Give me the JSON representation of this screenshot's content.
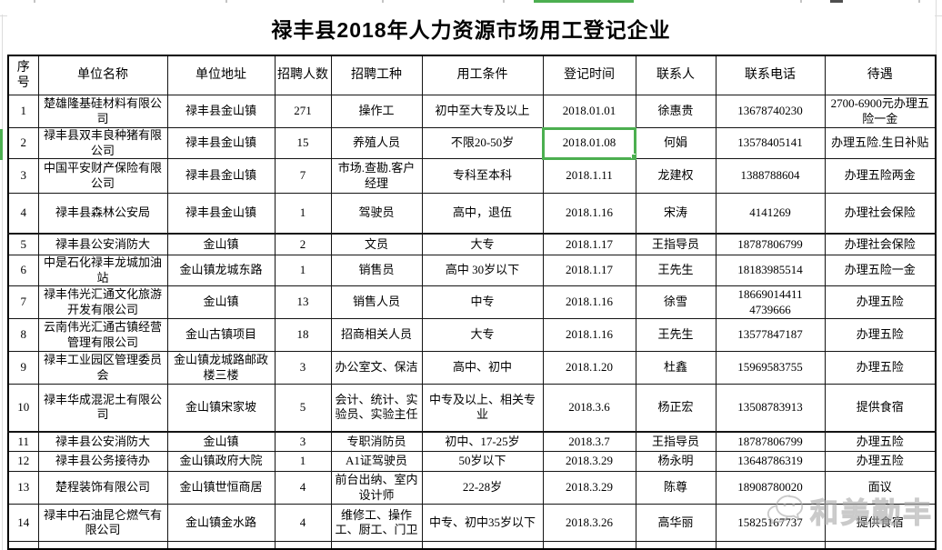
{
  "title": "禄丰县2018年人力资源市场用工登记企业",
  "table": {
    "headers": [
      "序\n号",
      "单位名称",
      "单位地址",
      "招聘人数",
      "招聘工种",
      "用工条件",
      "登记时间",
      "联系人",
      "联系电话",
      "待遇"
    ],
    "rows": [
      [
        "1",
        "楚雄隆基硅材料有限公司",
        "禄丰县金山镇",
        "271",
        "操作工",
        "初中至大专及以上",
        "2018.01.01",
        "徐惠贵",
        "13678740230",
        "2700-6900元办理五险一金"
      ],
      [
        "2",
        "禄丰县双丰良种猪有限公司",
        "禄丰县金山镇",
        "15",
        "养殖人员",
        "不限20-50岁",
        "2018.01.08",
        "何娟",
        "13578405141",
        "办理五险.生日补贴"
      ],
      [
        "3",
        "中国平安财产保险有限公司",
        "禄丰县金山镇",
        "7",
        "市场.查勘.客户经理",
        "专科至本科",
        "2018.1.11",
        "龙建权",
        "1388788604",
        "办理五险两金"
      ],
      [
        "4",
        "禄丰县森林公安局",
        "禄丰县金山镇",
        "1",
        "驾驶员",
        "高中，退伍",
        "2018.1.16",
        "宋涛",
        "4141269",
        "办理社会保险"
      ],
      [
        "5",
        "禄丰县公安消防大",
        "金山镇",
        "2",
        "文员",
        "大专",
        "2018.1.17",
        "王指导员",
        "18787806799",
        "办理社会保险"
      ],
      [
        "6",
        "中是石化禄丰龙城加油站",
        "金山镇龙城东路",
        "1",
        "销售员",
        "高中  30岁以下",
        "2018.1.17",
        "王先生",
        "18183985514",
        "办理五险一金"
      ],
      [
        "7",
        "禄丰伟光汇通文化旅游开发有限公司",
        "金山镇",
        "13",
        "销售人员",
        "中专",
        "2018.1.16",
        "徐雪",
        "18669014411\n4739666",
        "办理五险"
      ],
      [
        "8",
        "云南伟光汇通古镇经营管理有限公司",
        "金山古镇项目",
        "18",
        "招商相关人员",
        "大专",
        "2018.1.16",
        "王先生",
        "13577847187",
        "办理五险"
      ],
      [
        "9",
        "禄丰工业园区管理委员会",
        "金山镇龙城路邮政楼三楼",
        "3",
        "办公室文、保洁",
        "高中、初中",
        "2018.1.20",
        "杜鑫",
        "15969583755",
        "办理五险"
      ],
      [
        "10",
        "禄丰华成混泥土有限公司",
        "金山镇宋家坡",
        "5",
        "会计、统计、实验员、实验主任",
        "中专及以上、相关专业",
        "2018.3.6",
        "杨正宏",
        "13508783913",
        "提供食宿"
      ],
      [
        "11",
        "禄丰县公安消防大",
        "金山镇",
        "3",
        "专职消防员",
        "初中、17-25岁",
        "2018.3.7",
        "王指导员",
        "18787806799",
        "办理五险"
      ],
      [
        "12",
        "禄丰县公务接待办",
        "金山镇政府大院",
        "1",
        "A1证驾驶员",
        "50岁以下",
        "2018.3.29",
        "杨永明",
        "13648786319",
        "办理五险"
      ],
      [
        "13",
        "楚程装饰有限公司",
        "金山镇世恒商居",
        "4",
        "前台出纳、室内设计师",
        "22-28岁",
        "2018.3.29",
        "陈尊",
        "18908780020",
        "面议"
      ],
      [
        "14",
        "禄丰中石油昆仑燃气有限公司",
        "金山镇金水路",
        "4",
        "维修工、操作工、厨工、门卫",
        "中专、初中35岁以下",
        "2018.3.26",
        "高华丽",
        "15825167737",
        "提供食宿"
      ]
    ]
  },
  "selection": {
    "row_index": 1,
    "col_index": 6,
    "selected_value": "2018.01.08",
    "accent_color": "#4caf50"
  },
  "watermark": {
    "text": "和美勤丰",
    "icon": "wechat-bubbles-icon"
  },
  "colors": {
    "selection_green": "#4caf50",
    "table_border": "#000000",
    "gridline_gray": "#dcdcdc"
  }
}
